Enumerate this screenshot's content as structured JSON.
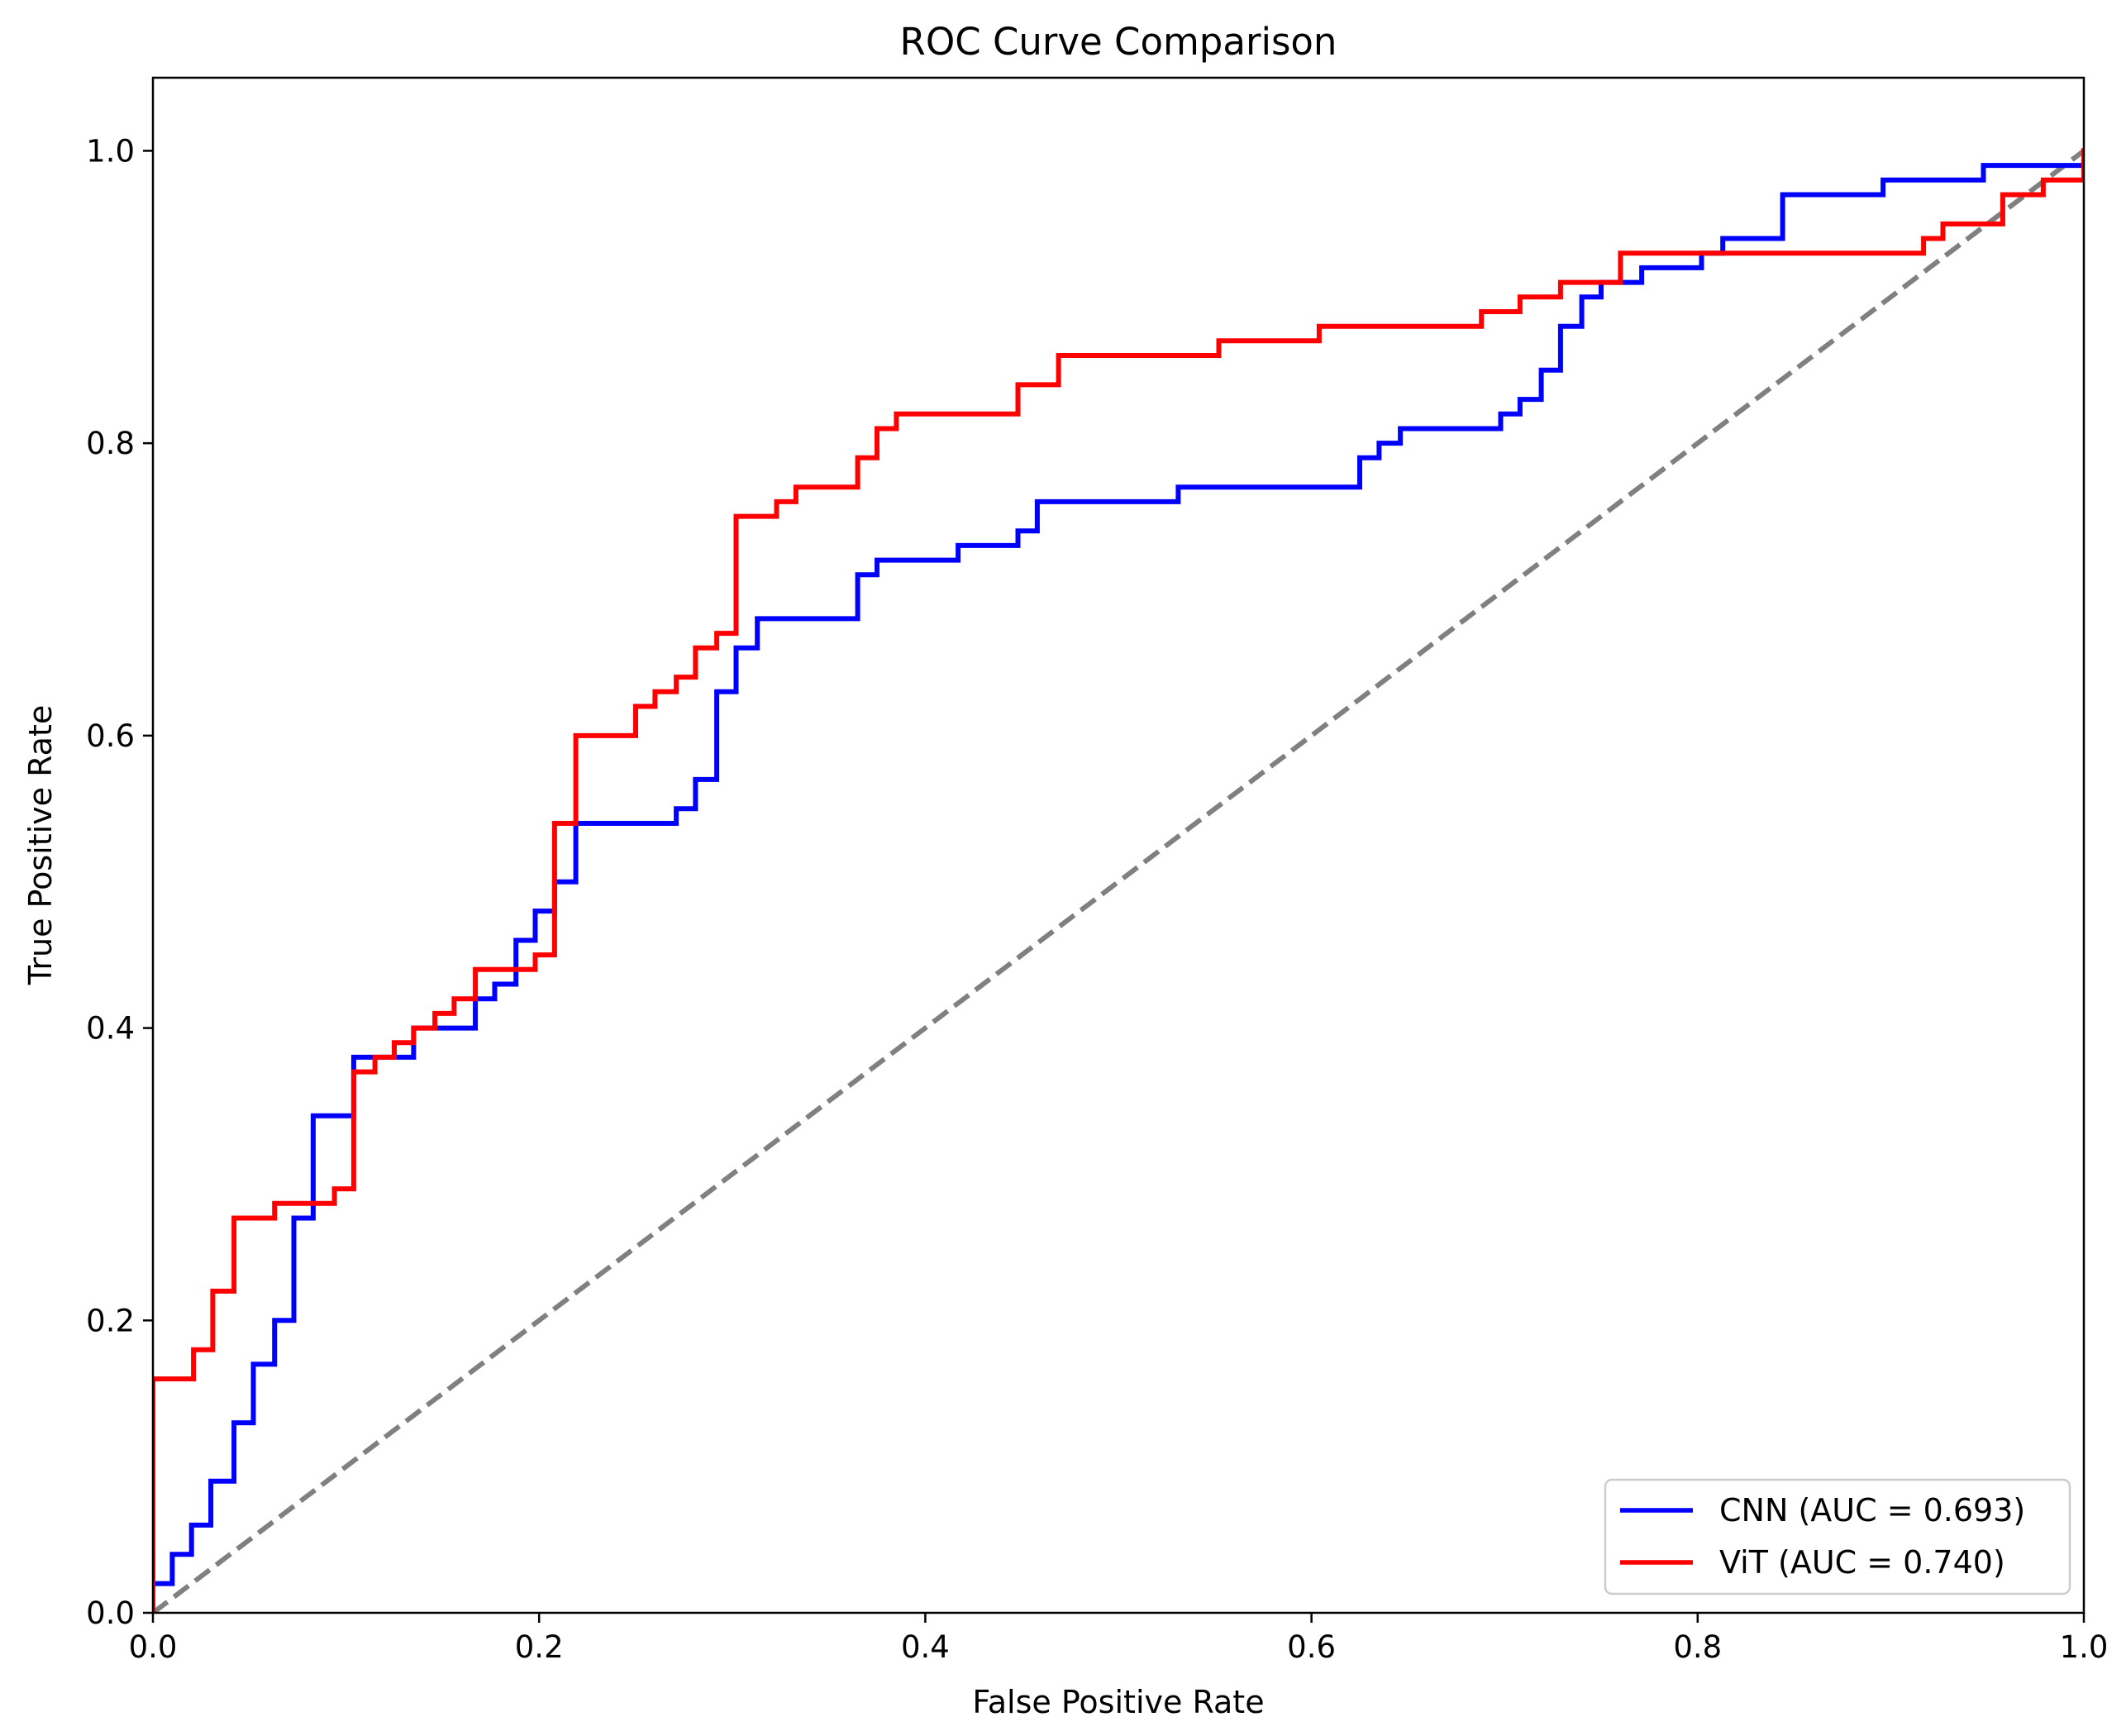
{
  "chart_data": {
    "type": "line",
    "title": "ROC Curve Comparison",
    "xlabel": "False Positive Rate",
    "ylabel": "True Positive Rate",
    "xlim": [
      0.0,
      1.0
    ],
    "ylim": [
      0.0,
      1.05
    ],
    "xticks": [
      "0.0",
      "0.2",
      "0.4",
      "0.6",
      "0.8",
      "1.0"
    ],
    "yticks": [
      "0.0",
      "0.2",
      "0.4",
      "0.6",
      "0.8",
      "1.0"
    ],
    "grid": false,
    "legend_position": "lower-right",
    "reference_line": {
      "x": [
        0.0,
        1.0
      ],
      "y": [
        0.0,
        1.0
      ],
      "color": "#808080",
      "style": "dashed"
    },
    "series": [
      {
        "name": "CNN (AUC = 0.693)",
        "color": "#0000ff",
        "points": [
          [
            0,
            0
          ],
          [
            0,
            0.02
          ],
          [
            0.01,
            0.02
          ],
          [
            0.01,
            0.04
          ],
          [
            0.02,
            0.04
          ],
          [
            0.02,
            0.06
          ],
          [
            0.03,
            0.06
          ],
          [
            0.03,
            0.09
          ],
          [
            0.042,
            0.09
          ],
          [
            0.042,
            0.13
          ],
          [
            0.052,
            0.13
          ],
          [
            0.052,
            0.17
          ],
          [
            0.063,
            0.17
          ],
          [
            0.063,
            0.2
          ],
          [
            0.073,
            0.2
          ],
          [
            0.073,
            0.27
          ],
          [
            0.083,
            0.27
          ],
          [
            0.083,
            0.34
          ],
          [
            0.104,
            0.34
          ],
          [
            0.104,
            0.38
          ],
          [
            0.135,
            0.38
          ],
          [
            0.135,
            0.4
          ],
          [
            0.167,
            0.4
          ],
          [
            0.167,
            0.42
          ],
          [
            0.177,
            0.42
          ],
          [
            0.177,
            0.43
          ],
          [
            0.188,
            0.43
          ],
          [
            0.188,
            0.46
          ],
          [
            0.198,
            0.46
          ],
          [
            0.198,
            0.48
          ],
          [
            0.208,
            0.48
          ],
          [
            0.208,
            0.5
          ],
          [
            0.219,
            0.5
          ],
          [
            0.219,
            0.54
          ],
          [
            0.271,
            0.54
          ],
          [
            0.271,
            0.55
          ],
          [
            0.281,
            0.55
          ],
          [
            0.281,
            0.57
          ],
          [
            0.292,
            0.57
          ],
          [
            0.292,
            0.63
          ],
          [
            0.302,
            0.63
          ],
          [
            0.302,
            0.66
          ],
          [
            0.313,
            0.66
          ],
          [
            0.313,
            0.68
          ],
          [
            0.365,
            0.68
          ],
          [
            0.365,
            0.71
          ],
          [
            0.375,
            0.71
          ],
          [
            0.375,
            0.72
          ],
          [
            0.417,
            0.72
          ],
          [
            0.417,
            0.73
          ],
          [
            0.448,
            0.73
          ],
          [
            0.448,
            0.74
          ],
          [
            0.458,
            0.74
          ],
          [
            0.458,
            0.76
          ],
          [
            0.531,
            0.76
          ],
          [
            0.531,
            0.77
          ],
          [
            0.625,
            0.77
          ],
          [
            0.625,
            0.79
          ],
          [
            0.635,
            0.79
          ],
          [
            0.635,
            0.8
          ],
          [
            0.646,
            0.8
          ],
          [
            0.646,
            0.81
          ],
          [
            0.698,
            0.81
          ],
          [
            0.698,
            0.82
          ],
          [
            0.708,
            0.82
          ],
          [
            0.708,
            0.83
          ],
          [
            0.719,
            0.83
          ],
          [
            0.719,
            0.85
          ],
          [
            0.729,
            0.85
          ],
          [
            0.729,
            0.88
          ],
          [
            0.74,
            0.88
          ],
          [
            0.74,
            0.9
          ],
          [
            0.75,
            0.9
          ],
          [
            0.75,
            0.91
          ],
          [
            0.771,
            0.91
          ],
          [
            0.771,
            0.92
          ],
          [
            0.802,
            0.92
          ],
          [
            0.802,
            0.93
          ],
          [
            0.813,
            0.93
          ],
          [
            0.813,
            0.94
          ],
          [
            0.844,
            0.94
          ],
          [
            0.844,
            0.97
          ],
          [
            0.896,
            0.97
          ],
          [
            0.896,
            0.98
          ],
          [
            0.948,
            0.98
          ],
          [
            0.948,
            0.99
          ],
          [
            1.0,
            0.99
          ],
          [
            1.0,
            1.0
          ]
        ]
      },
      {
        "name": "ViT (AUC = 0.740)",
        "color": "#ff0000",
        "points": [
          [
            0,
            0
          ],
          [
            0,
            0.16
          ],
          [
            0.021,
            0.16
          ],
          [
            0.021,
            0.18
          ],
          [
            0.031,
            0.18
          ],
          [
            0.031,
            0.22
          ],
          [
            0.042,
            0.22
          ],
          [
            0.042,
            0.27
          ],
          [
            0.063,
            0.27
          ],
          [
            0.063,
            0.28
          ],
          [
            0.094,
            0.28
          ],
          [
            0.094,
            0.29
          ],
          [
            0.104,
            0.29
          ],
          [
            0.104,
            0.37
          ],
          [
            0.115,
            0.37
          ],
          [
            0.115,
            0.38
          ],
          [
            0.125,
            0.38
          ],
          [
            0.125,
            0.39
          ],
          [
            0.135,
            0.39
          ],
          [
            0.135,
            0.4
          ],
          [
            0.146,
            0.4
          ],
          [
            0.146,
            0.41
          ],
          [
            0.156,
            0.41
          ],
          [
            0.156,
            0.42
          ],
          [
            0.167,
            0.42
          ],
          [
            0.167,
            0.44
          ],
          [
            0.198,
            0.44
          ],
          [
            0.198,
            0.45
          ],
          [
            0.208,
            0.45
          ],
          [
            0.208,
            0.54
          ],
          [
            0.219,
            0.54
          ],
          [
            0.219,
            0.6
          ],
          [
            0.25,
            0.6
          ],
          [
            0.25,
            0.62
          ],
          [
            0.26,
            0.62
          ],
          [
            0.26,
            0.63
          ],
          [
            0.271,
            0.63
          ],
          [
            0.271,
            0.64
          ],
          [
            0.281,
            0.64
          ],
          [
            0.281,
            0.66
          ],
          [
            0.292,
            0.66
          ],
          [
            0.292,
            0.67
          ],
          [
            0.302,
            0.67
          ],
          [
            0.302,
            0.75
          ],
          [
            0.323,
            0.75
          ],
          [
            0.323,
            0.76
          ],
          [
            0.333,
            0.76
          ],
          [
            0.333,
            0.77
          ],
          [
            0.365,
            0.77
          ],
          [
            0.365,
            0.79
          ],
          [
            0.375,
            0.79
          ],
          [
            0.375,
            0.81
          ],
          [
            0.385,
            0.81
          ],
          [
            0.385,
            0.82
          ],
          [
            0.448,
            0.82
          ],
          [
            0.448,
            0.84
          ],
          [
            0.469,
            0.84
          ],
          [
            0.469,
            0.86
          ],
          [
            0.552,
            0.86
          ],
          [
            0.552,
            0.87
          ],
          [
            0.604,
            0.87
          ],
          [
            0.604,
            0.88
          ],
          [
            0.688,
            0.88
          ],
          [
            0.688,
            0.89
          ],
          [
            0.708,
            0.89
          ],
          [
            0.708,
            0.9
          ],
          [
            0.729,
            0.9
          ],
          [
            0.729,
            0.91
          ],
          [
            0.76,
            0.91
          ],
          [
            0.76,
            0.93
          ],
          [
            0.917,
            0.93
          ],
          [
            0.917,
            0.94
          ],
          [
            0.927,
            0.94
          ],
          [
            0.927,
            0.95
          ],
          [
            0.958,
            0.95
          ],
          [
            0.958,
            0.97
          ],
          [
            0.979,
            0.97
          ],
          [
            0.979,
            0.98
          ],
          [
            1.0,
            0.98
          ],
          [
            1.0,
            1.0
          ]
        ]
      }
    ]
  }
}
